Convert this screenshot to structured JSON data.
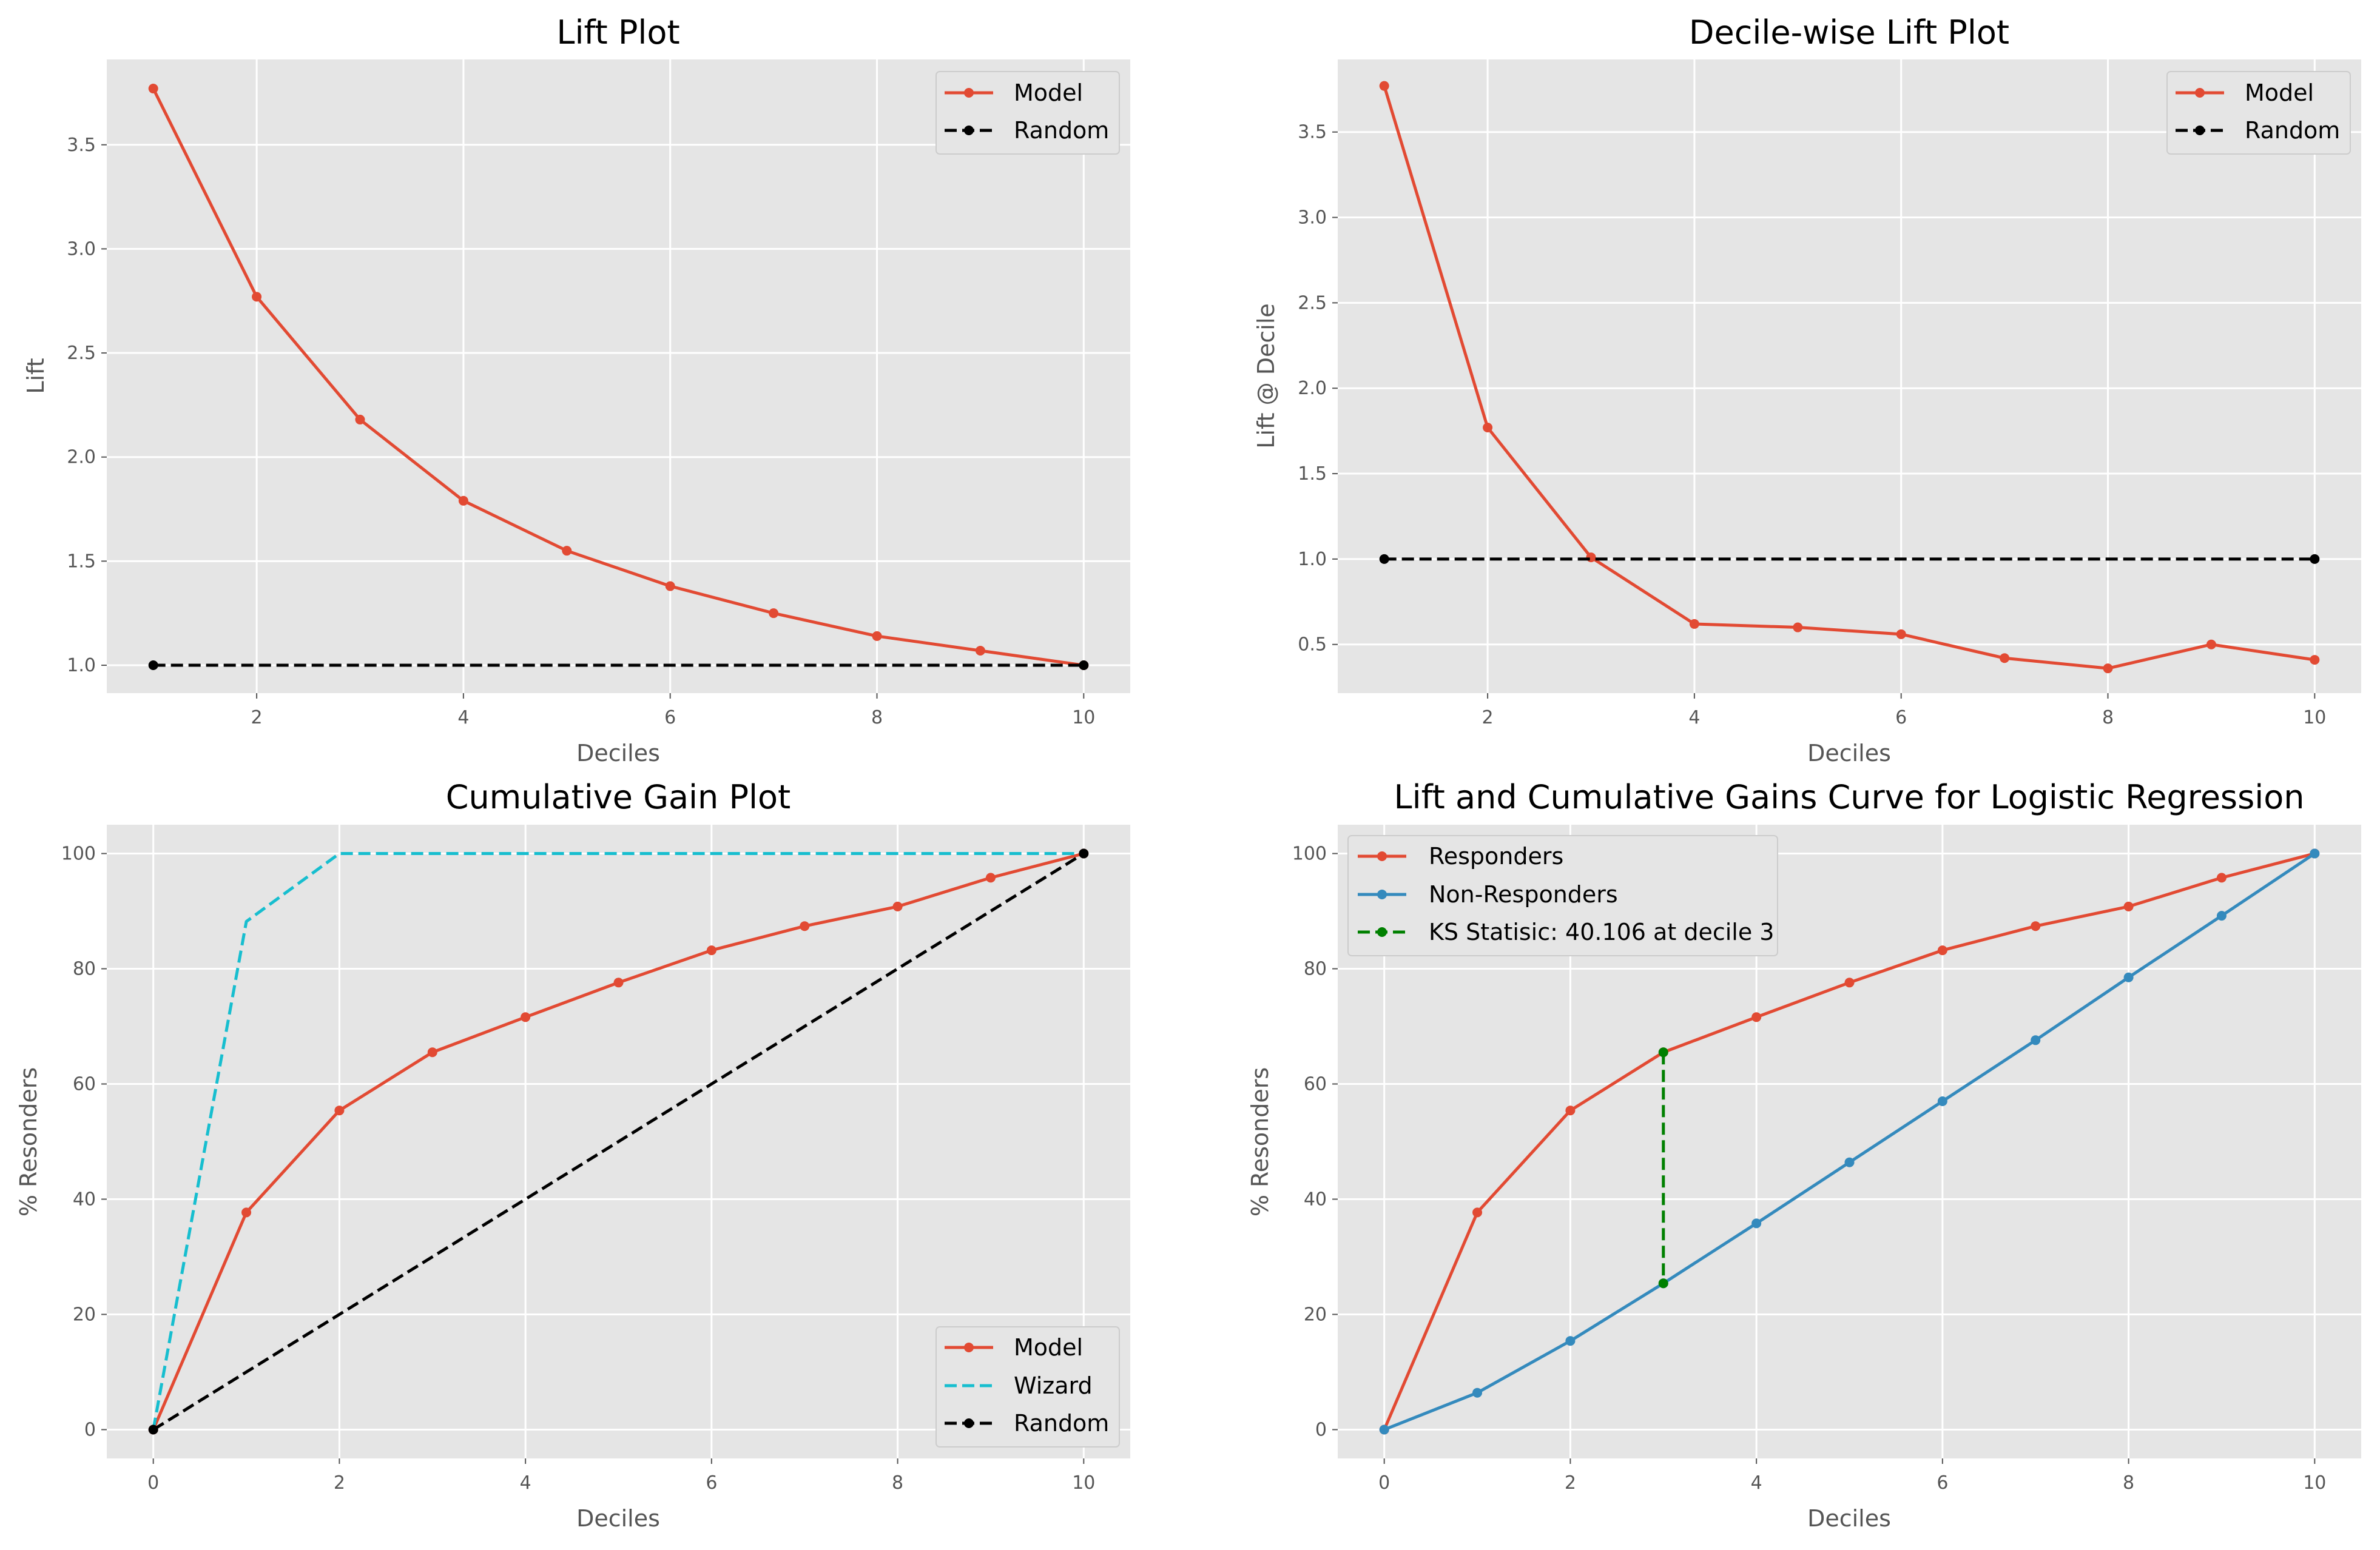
{
  "colors": {
    "axes_bg": "#e5e5e5",
    "grid": "#ffffff",
    "text": "#555555",
    "red": "#e24a33",
    "blue": "#348abd",
    "cyan": "#17becf",
    "green": "#008000",
    "black": "#000000"
  },
  "chart_data": [
    {
      "id": "lift",
      "type": "line",
      "title": "Lift Plot",
      "xlabel": "Deciles",
      "ylabel": "Lift",
      "xlim": [
        0.55,
        10.45
      ],
      "ylim": [
        0.866,
        3.91
      ],
      "xticks": [
        2,
        4,
        6,
        8,
        10
      ],
      "yticks": [
        1.0,
        1.5,
        2.0,
        2.5,
        3.0,
        3.5
      ],
      "ytick_labels": [
        "1.0",
        "1.5",
        "2.0",
        "2.5",
        "3.0",
        "3.5"
      ],
      "grid": true,
      "legend_position": "top-right",
      "series": [
        {
          "name": "Model",
          "color": "#e24a33",
          "dash": "solid",
          "markers": "all",
          "x": [
            1,
            2,
            3,
            4,
            5,
            6,
            7,
            8,
            9,
            10
          ],
          "y": [
            3.77,
            2.77,
            2.18,
            1.79,
            1.55,
            1.38,
            1.25,
            1.14,
            1.07,
            1.0
          ]
        },
        {
          "name": "Random",
          "color": "#000000",
          "dash": "dashed",
          "markers": "ends",
          "x": [
            1,
            10
          ],
          "y": [
            1.0,
            1.0
          ]
        }
      ]
    },
    {
      "id": "decile",
      "type": "line",
      "title": "Decile-wise Lift Plot",
      "xlabel": "Deciles",
      "ylabel": "Lift @ Decile",
      "xlim": [
        0.55,
        10.45
      ],
      "ylim": [
        0.215,
        3.925
      ],
      "xticks": [
        2,
        4,
        6,
        8,
        10
      ],
      "yticks": [
        0.5,
        1.0,
        1.5,
        2.0,
        2.5,
        3.0,
        3.5
      ],
      "ytick_labels": [
        "0.5",
        "1.0",
        "1.5",
        "2.0",
        "2.5",
        "3.0",
        "3.5"
      ],
      "grid": true,
      "legend_position": "top-right",
      "series": [
        {
          "name": "Model",
          "color": "#e24a33",
          "dash": "solid",
          "markers": "all",
          "x": [
            1,
            2,
            3,
            4,
            5,
            6,
            7,
            8,
            9,
            10
          ],
          "y": [
            3.77,
            1.77,
            1.01,
            0.62,
            0.6,
            0.56,
            0.42,
            0.36,
            0.5,
            0.41
          ]
        },
        {
          "name": "Random",
          "color": "#000000",
          "dash": "dashed",
          "markers": "ends",
          "x": [
            1,
            10
          ],
          "y": [
            1.0,
            1.0
          ]
        }
      ]
    },
    {
      "id": "gain",
      "type": "line",
      "title": "Cumulative Gain Plot",
      "xlabel": "Deciles",
      "ylabel": "% Resonders",
      "xlim": [
        -0.5,
        10.5
      ],
      "ylim": [
        -5,
        105
      ],
      "xticks": [
        0,
        2,
        4,
        6,
        8,
        10
      ],
      "yticks": [
        0,
        20,
        40,
        60,
        80,
        100
      ],
      "ytick_labels": [
        "0",
        "20",
        "40",
        "60",
        "80",
        "100"
      ],
      "grid": true,
      "legend_position": "bottom-right",
      "series": [
        {
          "name": "Model",
          "color": "#e24a33",
          "dash": "solid",
          "markers": "all",
          "x": [
            0,
            1,
            2,
            3,
            4,
            5,
            6,
            7,
            8,
            9,
            10
          ],
          "y": [
            0,
            37.7,
            55.4,
            65.5,
            71.6,
            77.6,
            83.2,
            87.4,
            90.8,
            95.8,
            100
          ]
        },
        {
          "name": "Wizard",
          "color": "#17becf",
          "dash": "dashed",
          "markers": "none",
          "x": [
            0,
            1,
            2,
            10
          ],
          "y": [
            0,
            88.2,
            100,
            100
          ]
        },
        {
          "name": "Random",
          "color": "#000000",
          "dash": "dashed",
          "markers": "ends",
          "x": [
            0,
            10
          ],
          "y": [
            0,
            100
          ]
        }
      ]
    },
    {
      "id": "ks",
      "type": "line",
      "title": "Lift and Cumulative Gains Curve for Logistic Regression",
      "xlabel": "Deciles",
      "ylabel": "% Resonders",
      "xlim": [
        -0.5,
        10.5
      ],
      "ylim": [
        -5,
        105
      ],
      "xticks": [
        0,
        2,
        4,
        6,
        8,
        10
      ],
      "yticks": [
        0,
        20,
        40,
        60,
        80,
        100
      ],
      "ytick_labels": [
        "0",
        "20",
        "40",
        "60",
        "80",
        "100"
      ],
      "grid": true,
      "legend_position": "top-left",
      "series": [
        {
          "name": "Responders",
          "color": "#e24a33",
          "dash": "solid",
          "markers": "all",
          "x": [
            0,
            1,
            2,
            3,
            4,
            5,
            6,
            7,
            8,
            9,
            10
          ],
          "y": [
            0,
            37.7,
            55.4,
            65.5,
            71.6,
            77.6,
            83.2,
            87.4,
            90.8,
            95.8,
            100
          ]
        },
        {
          "name": "Non-Responders",
          "color": "#348abd",
          "dash": "solid",
          "markers": "all",
          "x": [
            0,
            1,
            2,
            3,
            4,
            5,
            6,
            7,
            8,
            9,
            10
          ],
          "y": [
            0,
            6.4,
            15.4,
            25.4,
            35.8,
            46.4,
            57.0,
            67.6,
            78.5,
            89.2,
            100
          ]
        },
        {
          "name": "KS Statisic: 40.106 at decile 3",
          "color": "#008000",
          "dash": "dashed",
          "markers": "all",
          "x": [
            3,
            3
          ],
          "y": [
            65.5,
            25.4
          ]
        }
      ]
    }
  ]
}
